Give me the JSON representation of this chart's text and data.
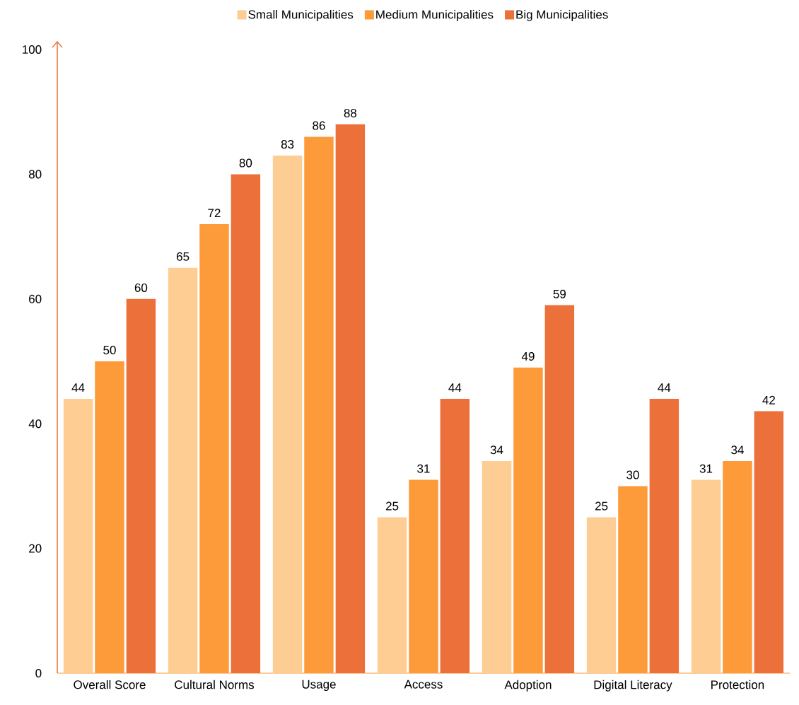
{
  "chart_data": {
    "type": "bar",
    "categories": [
      "Overall Score",
      "Cultural Norms",
      "Usage",
      "Access",
      "Adoption",
      "Digital Literacy",
      "Protection"
    ],
    "series": [
      {
        "name": "Small Municipalities",
        "color": "#fdcd93",
        "values": [
          44,
          65,
          83,
          25,
          34,
          25,
          31
        ]
      },
      {
        "name": "Medium Municipalities",
        "color": "#fd9a3a",
        "values": [
          50,
          72,
          86,
          31,
          49,
          30,
          34
        ]
      },
      {
        "name": "Big Municipalities",
        "color": "#ec7039",
        "values": [
          60,
          80,
          88,
          44,
          59,
          44,
          42
        ]
      }
    ],
    "ylim": [
      0,
      100
    ],
    "yticks": [
      0,
      20,
      40,
      60,
      80,
      100
    ],
    "data_labels": true,
    "legend": "top",
    "grid": false
  }
}
